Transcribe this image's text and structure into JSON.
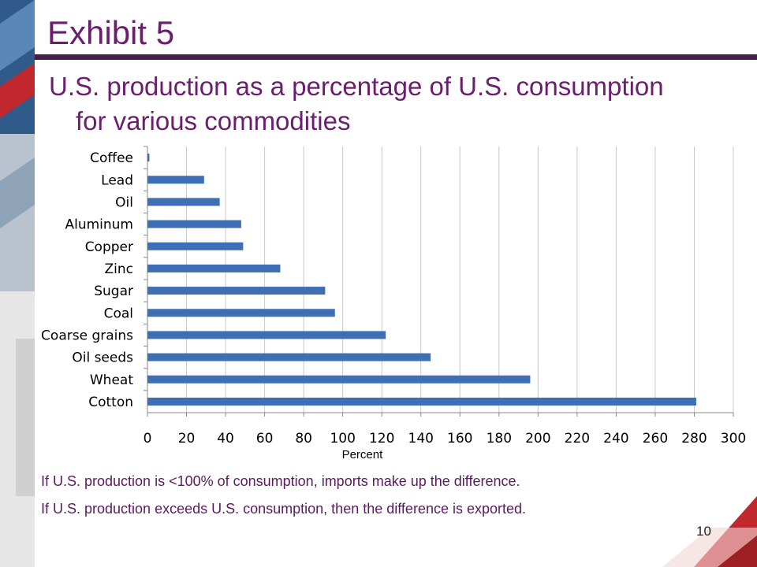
{
  "slide": {
    "title": "Exhibit 5",
    "subtitle_line1": "U.S. production as a percentage of U.S. consumption",
    "subtitle_line2": "for various commodities",
    "note1": "If U.S. production is <100% of consumption, imports make up the difference.",
    "note2": "If U.S. production exceeds U.S. consumption, then the difference is exported.",
    "page_number": "10",
    "colors": {
      "title": "#6a1e6e",
      "bar": "#3e6fb5",
      "grid": "#c8c8c8",
      "accent_red": "#c0282e",
      "rule": "#4a1d4d"
    }
  },
  "chart_data": {
    "type": "bar",
    "orientation": "horizontal",
    "title": "",
    "xlabel": "Percent",
    "ylabel": "",
    "xlim": [
      0,
      300
    ],
    "xticks": [
      0,
      20,
      40,
      60,
      80,
      100,
      120,
      140,
      160,
      180,
      200,
      220,
      240,
      260,
      280,
      300
    ],
    "grid": "vertical",
    "categories": [
      "Coffee",
      "Lead",
      "Oil",
      "Aluminum",
      "Copper",
      "Zinc",
      "Sugar",
      "Coal",
      "Coarse grains",
      "Oil seeds",
      "Wheat",
      "Cotton"
    ],
    "values": [
      1,
      29,
      37,
      48,
      49,
      68,
      91,
      96,
      122,
      145,
      196,
      281
    ]
  }
}
